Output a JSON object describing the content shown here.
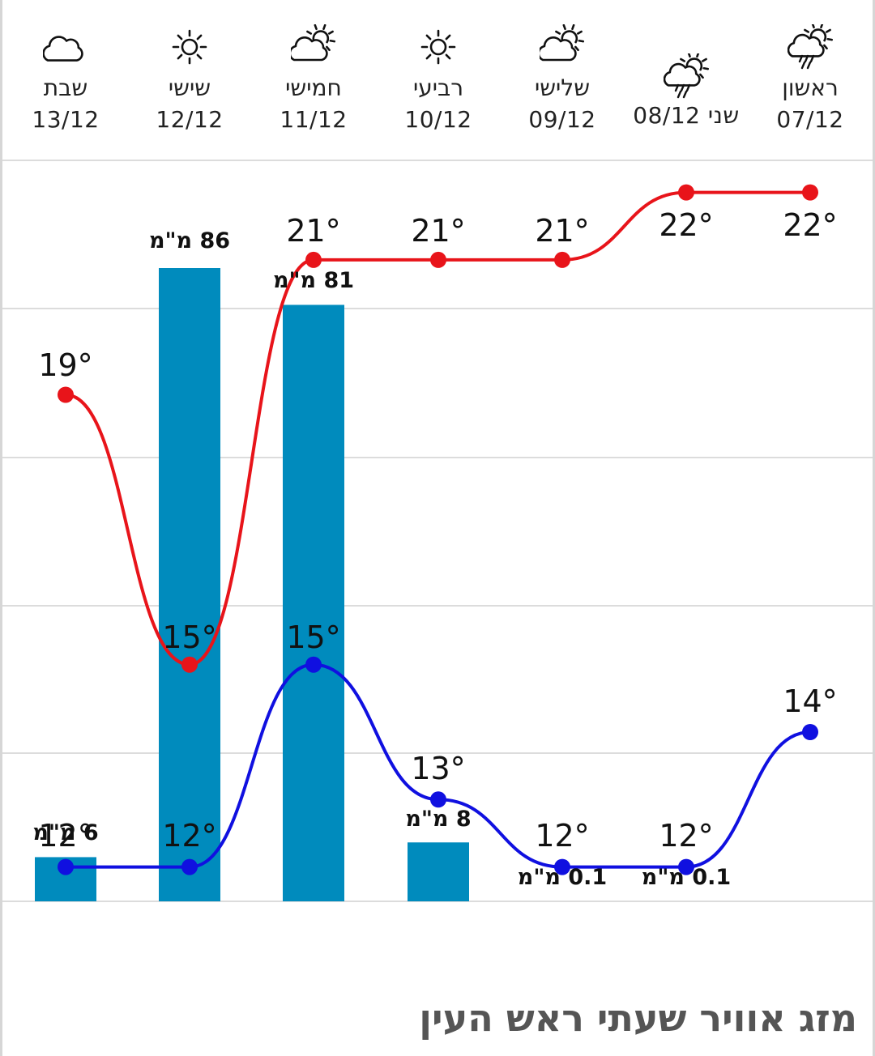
{
  "title": "מזג אוויר שעתי ראש העין",
  "days": [
    {
      "name": "ראשון",
      "date": "07/12",
      "icon": "cloud-sun-rain-icon"
    },
    {
      "name": "שני",
      "date": "08/12",
      "icon": "cloud-sun-rain-icon"
    },
    {
      "name": "שלישי",
      "date": "09/12",
      "icon": "cloud-sun-icon"
    },
    {
      "name": "רביעי",
      "date": "10/12",
      "icon": "sun-icon"
    },
    {
      "name": "חמישי",
      "date": "11/12",
      "icon": "cloud-sun-icon"
    },
    {
      "name": "שישי",
      "date": "12/12",
      "icon": "sun-icon"
    },
    {
      "name": "שבת",
      "date": "13/12",
      "icon": "cloud-icon"
    }
  ],
  "chart_data": {
    "type": "line",
    "categories": [
      "07/12",
      "08/12",
      "09/12",
      "10/12",
      "11/12",
      "12/12",
      "13/12"
    ],
    "series": [
      {
        "values": [
          22,
          22,
          21,
          21,
          21,
          15,
          19
        ],
        "color": "#e8141a"
      },
      {
        "values": [
          14,
          12,
          12,
          13,
          15,
          12,
          12
        ],
        "color": "#1010e0"
      }
    ],
    "rain": {
      "type": "bar",
      "values": [
        null,
        0.1,
        0.1,
        8,
        81,
        86,
        6
      ],
      "color": "#008bbd"
    },
    "temp_labels": {
      "high": [
        "22°",
        "22°",
        "21°",
        "21°",
        "21°",
        "15°",
        "19°"
      ],
      "low": [
        "14°",
        "12°",
        "12°",
        "13°",
        "15°",
        "12°",
        "12°"
      ]
    },
    "rain_labels": [
      "",
      "0.1 מ\"מ",
      "0.1 מ\"מ",
      "8 מ\"מ",
      "81 מ\"מ",
      "86 מ\"מ",
      "6 מ\"מ"
    ],
    "grid": true,
    "legend": "none"
  }
}
